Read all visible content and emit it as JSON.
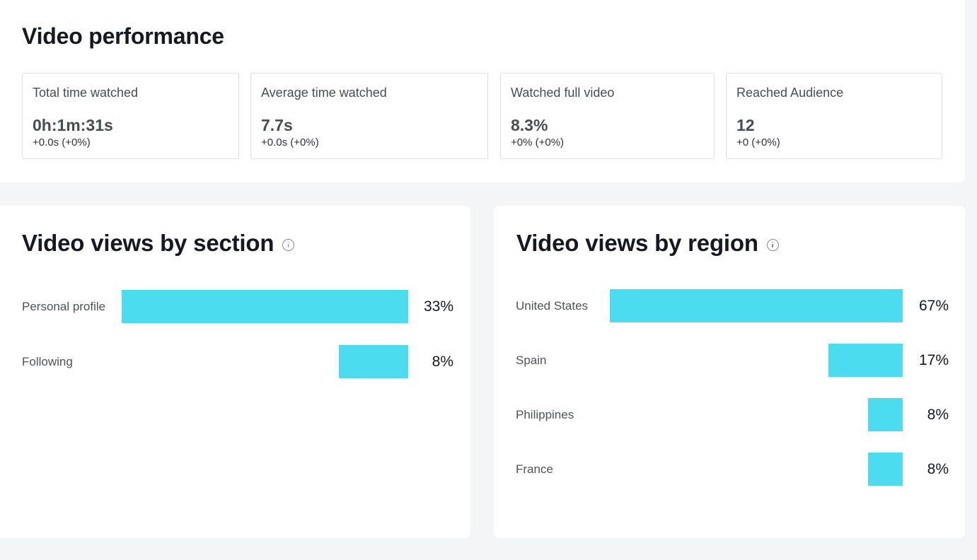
{
  "performance": {
    "title": "Video performance",
    "metrics": [
      {
        "label": "Total time watched",
        "value": "0h:1m:31s",
        "delta": "+0.0s (+0%)"
      },
      {
        "label": "Average time watched",
        "value": "7.7s",
        "delta": "+0.0s (+0%)"
      },
      {
        "label": "Watched full video",
        "value": "8.3%",
        "delta": "+0% (+0%)"
      },
      {
        "label": "Reached Audience",
        "value": "12",
        "delta": "+0 (+0%)"
      }
    ]
  },
  "section": {
    "title": "Video views by section",
    "info_icon": "info-icon"
  },
  "region": {
    "title": "Video views by region",
    "info_icon": "info-icon"
  },
  "colors": {
    "bar": "#4cdcef",
    "page_background": "#f4f5f7",
    "card_background": "#ffffff"
  },
  "chart_data": [
    {
      "type": "bar",
      "title": "Video views by section",
      "categories": [
        "Personal profile",
        "Following"
      ],
      "values": [
        33,
        8
      ],
      "value_labels": [
        "33%",
        "8%"
      ]
    },
    {
      "type": "bar",
      "title": "Video views by region",
      "categories": [
        "United States",
        "Spain",
        "Philippines",
        "France"
      ],
      "values": [
        67,
        17,
        8,
        8
      ],
      "value_labels": [
        "67%",
        "17%",
        "8%",
        "8%"
      ]
    }
  ]
}
